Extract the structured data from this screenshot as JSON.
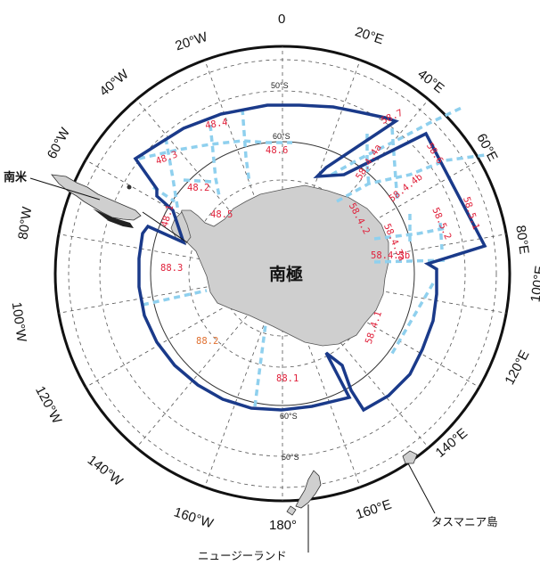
{
  "map": {
    "pole_label": "南極",
    "latitude_labels": [
      "50°S",
      "60°S",
      "60°S",
      "50°S"
    ],
    "longitude_labels": [
      "0",
      "20°E",
      "40°E",
      "60°E",
      "80°E",
      "100°E",
      "120°E",
      "140°E",
      "160°E",
      "180°",
      "160°W",
      "140°W",
      "120°W",
      "100°W",
      "80°W",
      "60°W",
      "40°W",
      "20°W"
    ],
    "place_labels": {
      "south_america": "南米",
      "tasmania": "タスマニア島",
      "new_zealand": "ニュージーランド"
    },
    "statistical_areas": [
      {
        "code": "48.1"
      },
      {
        "code": "48.2"
      },
      {
        "code": "48.3"
      },
      {
        "code": "48.4"
      },
      {
        "code": "48.5"
      },
      {
        "code": "48.6"
      },
      {
        "code": "58.4.1"
      },
      {
        "code": "58.4.2"
      },
      {
        "code": "58.4.3a"
      },
      {
        "code": "58.4.3b"
      },
      {
        "code": "58.4.4a"
      },
      {
        "code": "58.4.4b"
      },
      {
        "code": "58.5.1"
      },
      {
        "code": "58.5.2"
      },
      {
        "code": "58.6"
      },
      {
        "code": "58.7"
      },
      {
        "code": "88.1"
      },
      {
        "code": "88.2"
      },
      {
        "code": "88.3"
      }
    ],
    "colors": {
      "boundary": "#1a3a8a",
      "subdivision": "#8fd0ee",
      "area_label": "#e0203a",
      "area_label_alt": "#e07030",
      "land": "#cfcfcf",
      "ocean": "#ffffff",
      "outer_ring": "#111111"
    }
  }
}
